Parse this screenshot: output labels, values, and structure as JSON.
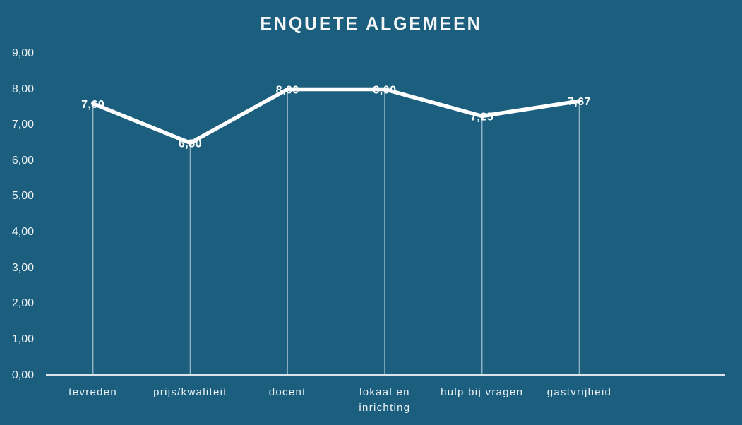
{
  "chart_data": {
    "type": "line",
    "title": "ENQUETE ALGEMEEN",
    "categories": [
      "tevreden",
      "prijs/kwaliteit",
      "docent",
      "lokaal en inrichting",
      "hulp bij vragen",
      "gastvrijheid"
    ],
    "category_label_lines": [
      [
        "tevreden"
      ],
      [
        "prijs/kwaliteit"
      ],
      [
        "docent"
      ],
      [
        "lokaal en",
        "inrichting"
      ],
      [
        "hulp bij vragen"
      ],
      [
        "gastvrijheid"
      ]
    ],
    "values": [
      7.6,
      6.5,
      8.0,
      8.0,
      7.25,
      7.67
    ],
    "data_labels": [
      "7,60",
      "6,50",
      "8,00",
      "8,00",
      "7,25",
      "7,67"
    ],
    "y_ticks": [
      "0,00",
      "1,00",
      "2,00",
      "3,00",
      "4,00",
      "5,00",
      "6,00",
      "7,00",
      "8,00",
      "9,00"
    ],
    "ylim": [
      0,
      9
    ],
    "xlabel": "",
    "ylabel": "",
    "grid": false,
    "legend": false,
    "decimal_separator": ",",
    "colors": {
      "background": "#1c5e7e",
      "line": "#ffffff",
      "text": "#eef3f6",
      "data_label": "#ffffff",
      "axis_line": "#dbe4ea",
      "dropline": "#cfe0e8"
    }
  }
}
